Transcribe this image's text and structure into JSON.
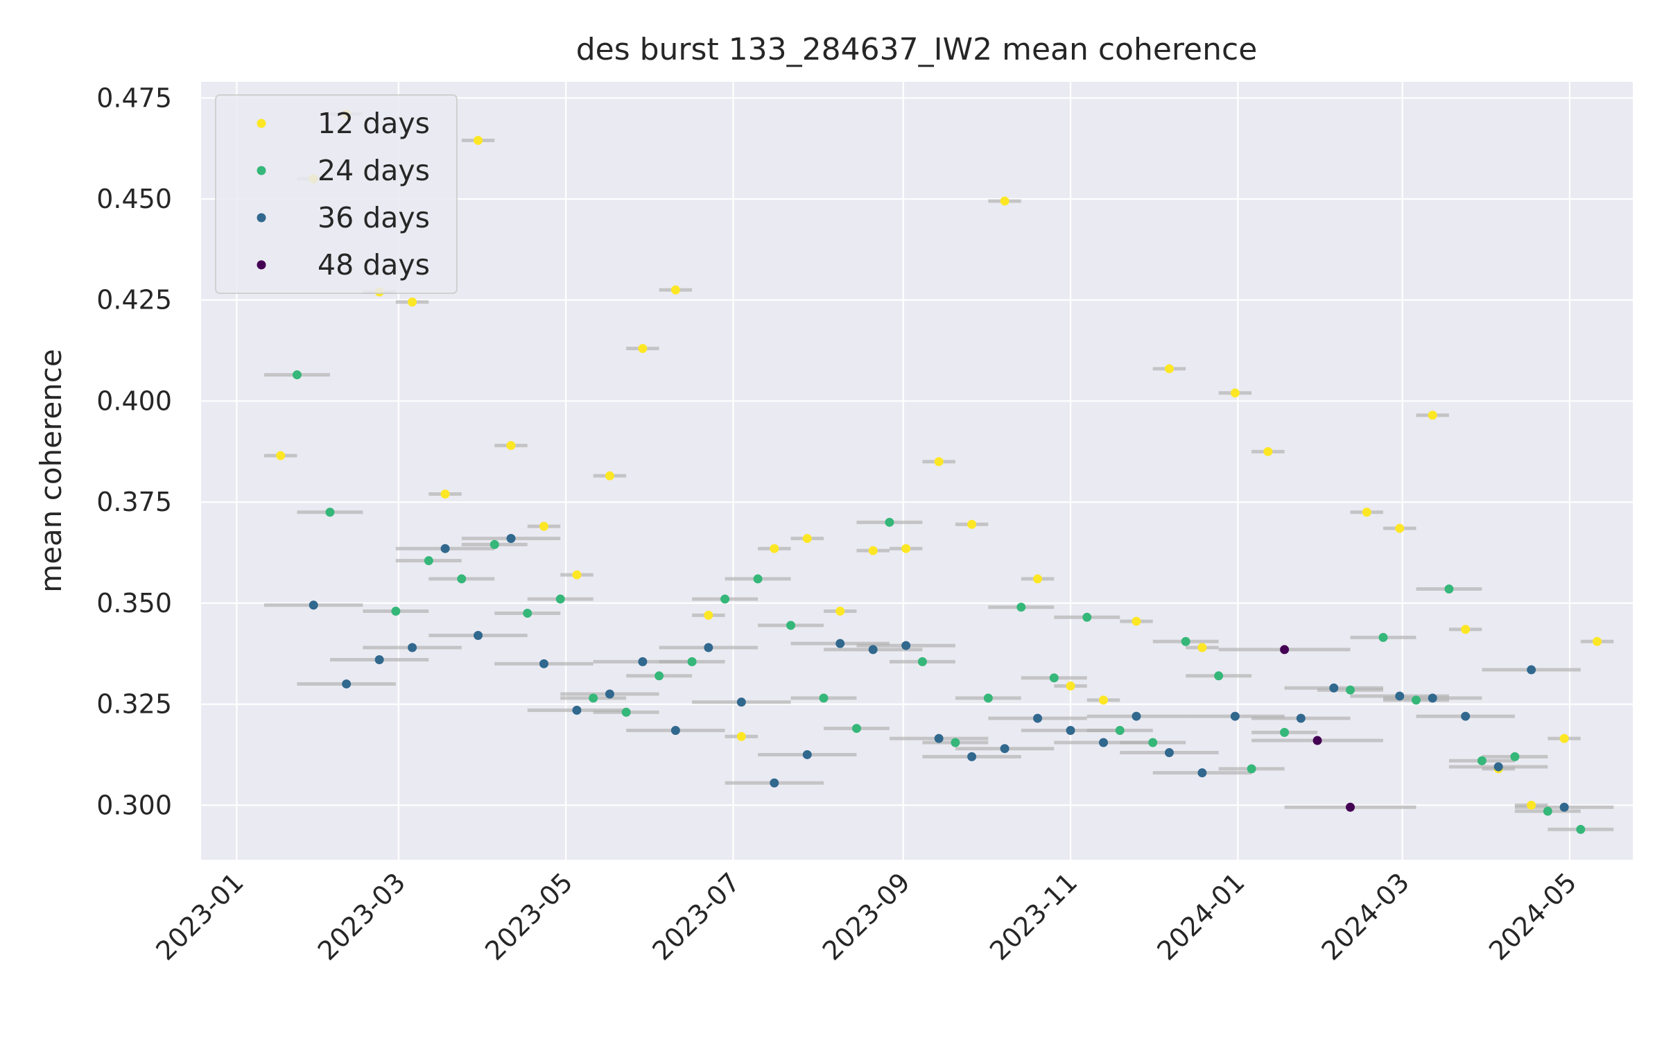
{
  "chart_data": {
    "type": "scatter",
    "title": "des burst 133_284637_IW2 mean coherence",
    "xlabel": "",
    "ylabel": "mean coherence",
    "xlim": [
      "2022-12-19",
      "2024-05-24"
    ],
    "ylim": [
      0.2865,
      0.479
    ],
    "x_ticks": [
      "2023-01",
      "2023-03",
      "2023-05",
      "2023-07",
      "2023-09",
      "2023-11",
      "2024-01",
      "2024-03",
      "2024-05"
    ],
    "y_ticks": [
      "0.300",
      "0.325",
      "0.350",
      "0.375",
      "0.400",
      "0.425",
      "0.450",
      "0.475"
    ],
    "grid": true,
    "background_color": "#eaeaf2",
    "legend_position": "top-left",
    "series_colors": {
      "12 days": "#fde725",
      "24 days": "#35b779",
      "36 days": "#31688e",
      "48 days": "#440154"
    },
    "interval_color": "#b0b0b0",
    "series": [
      {
        "name": "12 days",
        "points": [
          {
            "x": "2023-01-17",
            "y": 0.3865
          },
          {
            "x": "2023-01-29",
            "y": 0.455
          },
          {
            "x": "2023-02-10",
            "y": 0.471
          },
          {
            "x": "2023-02-22",
            "y": 0.427
          },
          {
            "x": "2023-03-06",
            "y": 0.4245
          },
          {
            "x": "2023-03-18",
            "y": 0.377
          },
          {
            "x": "2023-03-30",
            "y": 0.4645
          },
          {
            "x": "2023-04-11",
            "y": 0.389
          },
          {
            "x": "2023-04-23",
            "y": 0.369
          },
          {
            "x": "2023-05-05",
            "y": 0.357
          },
          {
            "x": "2023-05-17",
            "y": 0.3815
          },
          {
            "x": "2023-05-29",
            "y": 0.413
          },
          {
            "x": "2023-06-10",
            "y": 0.4275
          },
          {
            "x": "2023-06-22",
            "y": 0.347
          },
          {
            "x": "2023-07-04",
            "y": 0.317
          },
          {
            "x": "2023-07-16",
            "y": 0.3635
          },
          {
            "x": "2023-07-28",
            "y": 0.366
          },
          {
            "x": "2023-08-09",
            "y": 0.348
          },
          {
            "x": "2023-08-21",
            "y": 0.363
          },
          {
            "x": "2023-09-02",
            "y": 0.3635
          },
          {
            "x": "2023-09-14",
            "y": 0.385
          },
          {
            "x": "2023-09-26",
            "y": 0.3695
          },
          {
            "x": "2023-10-08",
            "y": 0.4495
          },
          {
            "x": "2023-10-20",
            "y": 0.356
          },
          {
            "x": "2023-11-01",
            "y": 0.3295
          },
          {
            "x": "2023-11-13",
            "y": 0.326
          },
          {
            "x": "2023-11-25",
            "y": 0.3455
          },
          {
            "x": "2023-12-07",
            "y": 0.408
          },
          {
            "x": "2023-12-19",
            "y": 0.339
          },
          {
            "x": "2023-12-31",
            "y": 0.402
          },
          {
            "x": "2024-01-12",
            "y": 0.3875
          },
          {
            "x": "2024-02-17",
            "y": 0.3725
          },
          {
            "x": "2024-02-29",
            "y": 0.3685
          },
          {
            "x": "2024-03-12",
            "y": 0.3965
          },
          {
            "x": "2024-03-24",
            "y": 0.3435
          },
          {
            "x": "2024-04-05",
            "y": 0.309
          },
          {
            "x": "2024-04-17",
            "y": 0.3
          },
          {
            "x": "2024-04-29",
            "y": 0.3165
          },
          {
            "x": "2024-05-11",
            "y": 0.3405
          }
        ]
      },
      {
        "name": "24 days",
        "points": [
          {
            "x": "2023-01-23",
            "y": 0.4065
          },
          {
            "x": "2023-02-04",
            "y": 0.3725
          },
          {
            "x": "2023-02-28",
            "y": 0.348
          },
          {
            "x": "2023-03-12",
            "y": 0.3605
          },
          {
            "x": "2023-03-24",
            "y": 0.356
          },
          {
            "x": "2023-04-05",
            "y": 0.3645
          },
          {
            "x": "2023-04-17",
            "y": 0.3475
          },
          {
            "x": "2023-04-29",
            "y": 0.351
          },
          {
            "x": "2023-05-11",
            "y": 0.3265
          },
          {
            "x": "2023-05-23",
            "y": 0.323
          },
          {
            "x": "2023-06-04",
            "y": 0.332
          },
          {
            "x": "2023-06-16",
            "y": 0.3355
          },
          {
            "x": "2023-06-28",
            "y": 0.351
          },
          {
            "x": "2023-07-10",
            "y": 0.356
          },
          {
            "x": "2023-07-22",
            "y": 0.3445
          },
          {
            "x": "2023-08-03",
            "y": 0.3265
          },
          {
            "x": "2023-08-15",
            "y": 0.319
          },
          {
            "x": "2023-08-27",
            "y": 0.37
          },
          {
            "x": "2023-09-08",
            "y": 0.3355
          },
          {
            "x": "2023-09-20",
            "y": 0.3155
          },
          {
            "x": "2023-10-02",
            "y": 0.3265
          },
          {
            "x": "2023-10-14",
            "y": 0.349
          },
          {
            "x": "2023-10-26",
            "y": 0.3315
          },
          {
            "x": "2023-11-07",
            "y": 0.3465
          },
          {
            "x": "2023-11-19",
            "y": 0.3185
          },
          {
            "x": "2023-12-01",
            "y": 0.3155
          },
          {
            "x": "2023-12-13",
            "y": 0.3405
          },
          {
            "x": "2023-12-25",
            "y": 0.332
          },
          {
            "x": "2024-01-06",
            "y": 0.309
          },
          {
            "x": "2024-01-18",
            "y": 0.318
          },
          {
            "x": "2024-02-11",
            "y": 0.3285
          },
          {
            "x": "2024-02-23",
            "y": 0.3415
          },
          {
            "x": "2024-03-06",
            "y": 0.326
          },
          {
            "x": "2024-03-18",
            "y": 0.3535
          },
          {
            "x": "2024-03-30",
            "y": 0.311
          },
          {
            "x": "2024-04-11",
            "y": 0.312
          },
          {
            "x": "2024-04-23",
            "y": 0.2985
          },
          {
            "x": "2024-05-05",
            "y": 0.294
          }
        ]
      },
      {
        "name": "36 days",
        "points": [
          {
            "x": "2023-01-29",
            "y": 0.3495
          },
          {
            "x": "2023-02-10",
            "y": 0.33
          },
          {
            "x": "2023-02-22",
            "y": 0.336
          },
          {
            "x": "2023-03-06",
            "y": 0.339
          },
          {
            "x": "2023-03-18",
            "y": 0.3635
          },
          {
            "x": "2023-03-30",
            "y": 0.342
          },
          {
            "x": "2023-04-11",
            "y": 0.366
          },
          {
            "x": "2023-04-23",
            "y": 0.335
          },
          {
            "x": "2023-05-05",
            "y": 0.3235
          },
          {
            "x": "2023-05-17",
            "y": 0.3275
          },
          {
            "x": "2023-05-29",
            "y": 0.3355
          },
          {
            "x": "2023-06-10",
            "y": 0.3185
          },
          {
            "x": "2023-06-22",
            "y": 0.339
          },
          {
            "x": "2023-07-04",
            "y": 0.3255
          },
          {
            "x": "2023-07-16",
            "y": 0.3055
          },
          {
            "x": "2023-07-28",
            "y": 0.3125
          },
          {
            "x": "2023-08-09",
            "y": 0.34
          },
          {
            "x": "2023-08-21",
            "y": 0.3385
          },
          {
            "x": "2023-09-02",
            "y": 0.3395
          },
          {
            "x": "2023-09-14",
            "y": 0.3165
          },
          {
            "x": "2023-09-26",
            "y": 0.312
          },
          {
            "x": "2023-10-08",
            "y": 0.314
          },
          {
            "x": "2023-10-20",
            "y": 0.3215
          },
          {
            "x": "2023-11-01",
            "y": 0.3185
          },
          {
            "x": "2023-11-13",
            "y": 0.3155
          },
          {
            "x": "2023-11-25",
            "y": 0.322
          },
          {
            "x": "2023-12-07",
            "y": 0.313
          },
          {
            "x": "2023-12-19",
            "y": 0.308
          },
          {
            "x": "2023-12-31",
            "y": 0.322
          },
          {
            "x": "2024-01-24",
            "y": 0.3215
          },
          {
            "x": "2024-02-05",
            "y": 0.329
          },
          {
            "x": "2024-02-29",
            "y": 0.327
          },
          {
            "x": "2024-03-12",
            "y": 0.3265
          },
          {
            "x": "2024-03-24",
            "y": 0.322
          },
          {
            "x": "2024-04-05",
            "y": 0.3095
          },
          {
            "x": "2024-04-17",
            "y": 0.3335
          },
          {
            "x": "2024-04-29",
            "y": 0.2995
          }
        ]
      },
      {
        "name": "48 days",
        "points": [
          {
            "x": "2024-01-18",
            "y": 0.3385
          },
          {
            "x": "2024-01-30",
            "y": 0.316
          },
          {
            "x": "2024-02-11",
            "y": 0.2995
          }
        ]
      }
    ]
  }
}
